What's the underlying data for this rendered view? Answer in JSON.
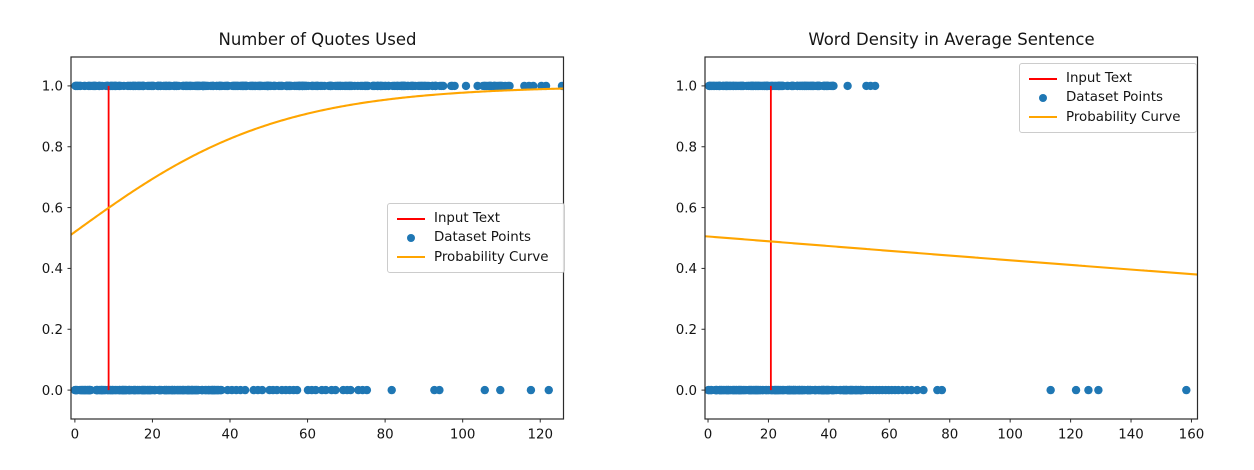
{
  "figure": {
    "background": "#ffffff"
  },
  "colors": {
    "points_blue": "#1f77b4",
    "input_red": "#ff0000",
    "curve_orange": "#ffa500",
    "spine": "#2b2b2b",
    "text": "#151515"
  },
  "chart_data": [
    {
      "type": "scatter",
      "title": "Number of Quotes Used",
      "xlabel": "",
      "ylabel": "",
      "xlim": [
        -1,
        126
      ],
      "ylim": [
        -0.095,
        1.095
      ],
      "xticks": [
        0,
        20,
        40,
        60,
        80,
        100,
        120
      ],
      "yticks": [
        0.0,
        0.2,
        0.4,
        0.6,
        0.8,
        1.0
      ],
      "grid": false,
      "legend": {
        "position": "center right",
        "entries": [
          "Input Text",
          "Dataset Points",
          "Probability Curve"
        ]
      },
      "input_text_x": 8.7,
      "probability_curve": {
        "model": "logistic",
        "logit_intercept": 0.08,
        "logit_slope": 0.037,
        "approx_points": [
          [
            0,
            0.52
          ],
          [
            9,
            0.6
          ],
          [
            27,
            0.76
          ],
          [
            48,
            0.87
          ],
          [
            80,
            0.955
          ],
          [
            120,
            0.989
          ]
        ]
      },
      "dataset_points": {
        "y1": {
          "bands": [
            {
              "from": 0,
              "to": 60,
              "count": 270
            },
            {
              "from": 60,
              "to": 95,
              "count": 115
            },
            {
              "from": 95,
              "to": 114.5,
              "count": 26
            }
          ],
          "singles": [
            115.9,
            117.1,
            118.2,
            120.3,
            121.5,
            125.6
          ]
        },
        "y0": {
          "bands": [
            {
              "from": 0,
              "to": 38,
              "count": 235
            }
          ],
          "singles": [
            39.4,
            40.5,
            41.6,
            42.7,
            43.9,
            46.1,
            47.2,
            48.3,
            50.2,
            51.1,
            52.1,
            53.4,
            54.4,
            55.4,
            56.4,
            57.3,
            60.1,
            61.1,
            62.1,
            63.7,
            64.7,
            66.2,
            67.2,
            69.2,
            70.2,
            71.1,
            73.1,
            74.2,
            75.3,
            81.7,
            92.7,
            94.0,
            105.7,
            109.7,
            117.6,
            122.2
          ]
        }
      }
    },
    {
      "type": "scatter",
      "title": "Word Density in Average Sentence",
      "xlabel": "",
      "ylabel": "",
      "xlim": [
        -1,
        162
      ],
      "ylim": [
        -0.095,
        1.095
      ],
      "xticks": [
        0,
        20,
        40,
        60,
        80,
        100,
        120,
        140,
        160
      ],
      "yticks": [
        0.0,
        0.2,
        0.4,
        0.6,
        0.8,
        1.0
      ],
      "grid": false,
      "legend": {
        "position": "upper right",
        "entries": [
          "Input Text",
          "Dataset Points",
          "Probability Curve"
        ]
      },
      "input_text_x": 20.8,
      "probability_curve": {
        "model": "logistic",
        "logit_intercept": 0.02,
        "logit_slope": -0.00315,
        "approx_points": [
          [
            0,
            0.505
          ],
          [
            80,
            0.443
          ],
          [
            160,
            0.38
          ]
        ]
      },
      "dataset_points": {
        "y1": {
          "bands": [
            {
              "from": 0.3,
              "to": 41.6,
              "count": 175
            }
          ],
          "singles": [
            46.2,
            52.4,
            53.8,
            55.3
          ]
        },
        "y0": {
          "bands": [
            {
              "from": 0,
              "to": 51.5,
              "count": 255
            }
          ],
          "singles": [
            52.6,
            53.6,
            54.6,
            55.7,
            56.7,
            57.7,
            58.8,
            59.8,
            60.8,
            61.9,
            63.0,
            64.4,
            65.9,
            67.3,
            69.2,
            71.3,
            75.9,
            77.4,
            113.4,
            121.8,
            125.9,
            129.2,
            158.3
          ]
        }
      }
    }
  ]
}
